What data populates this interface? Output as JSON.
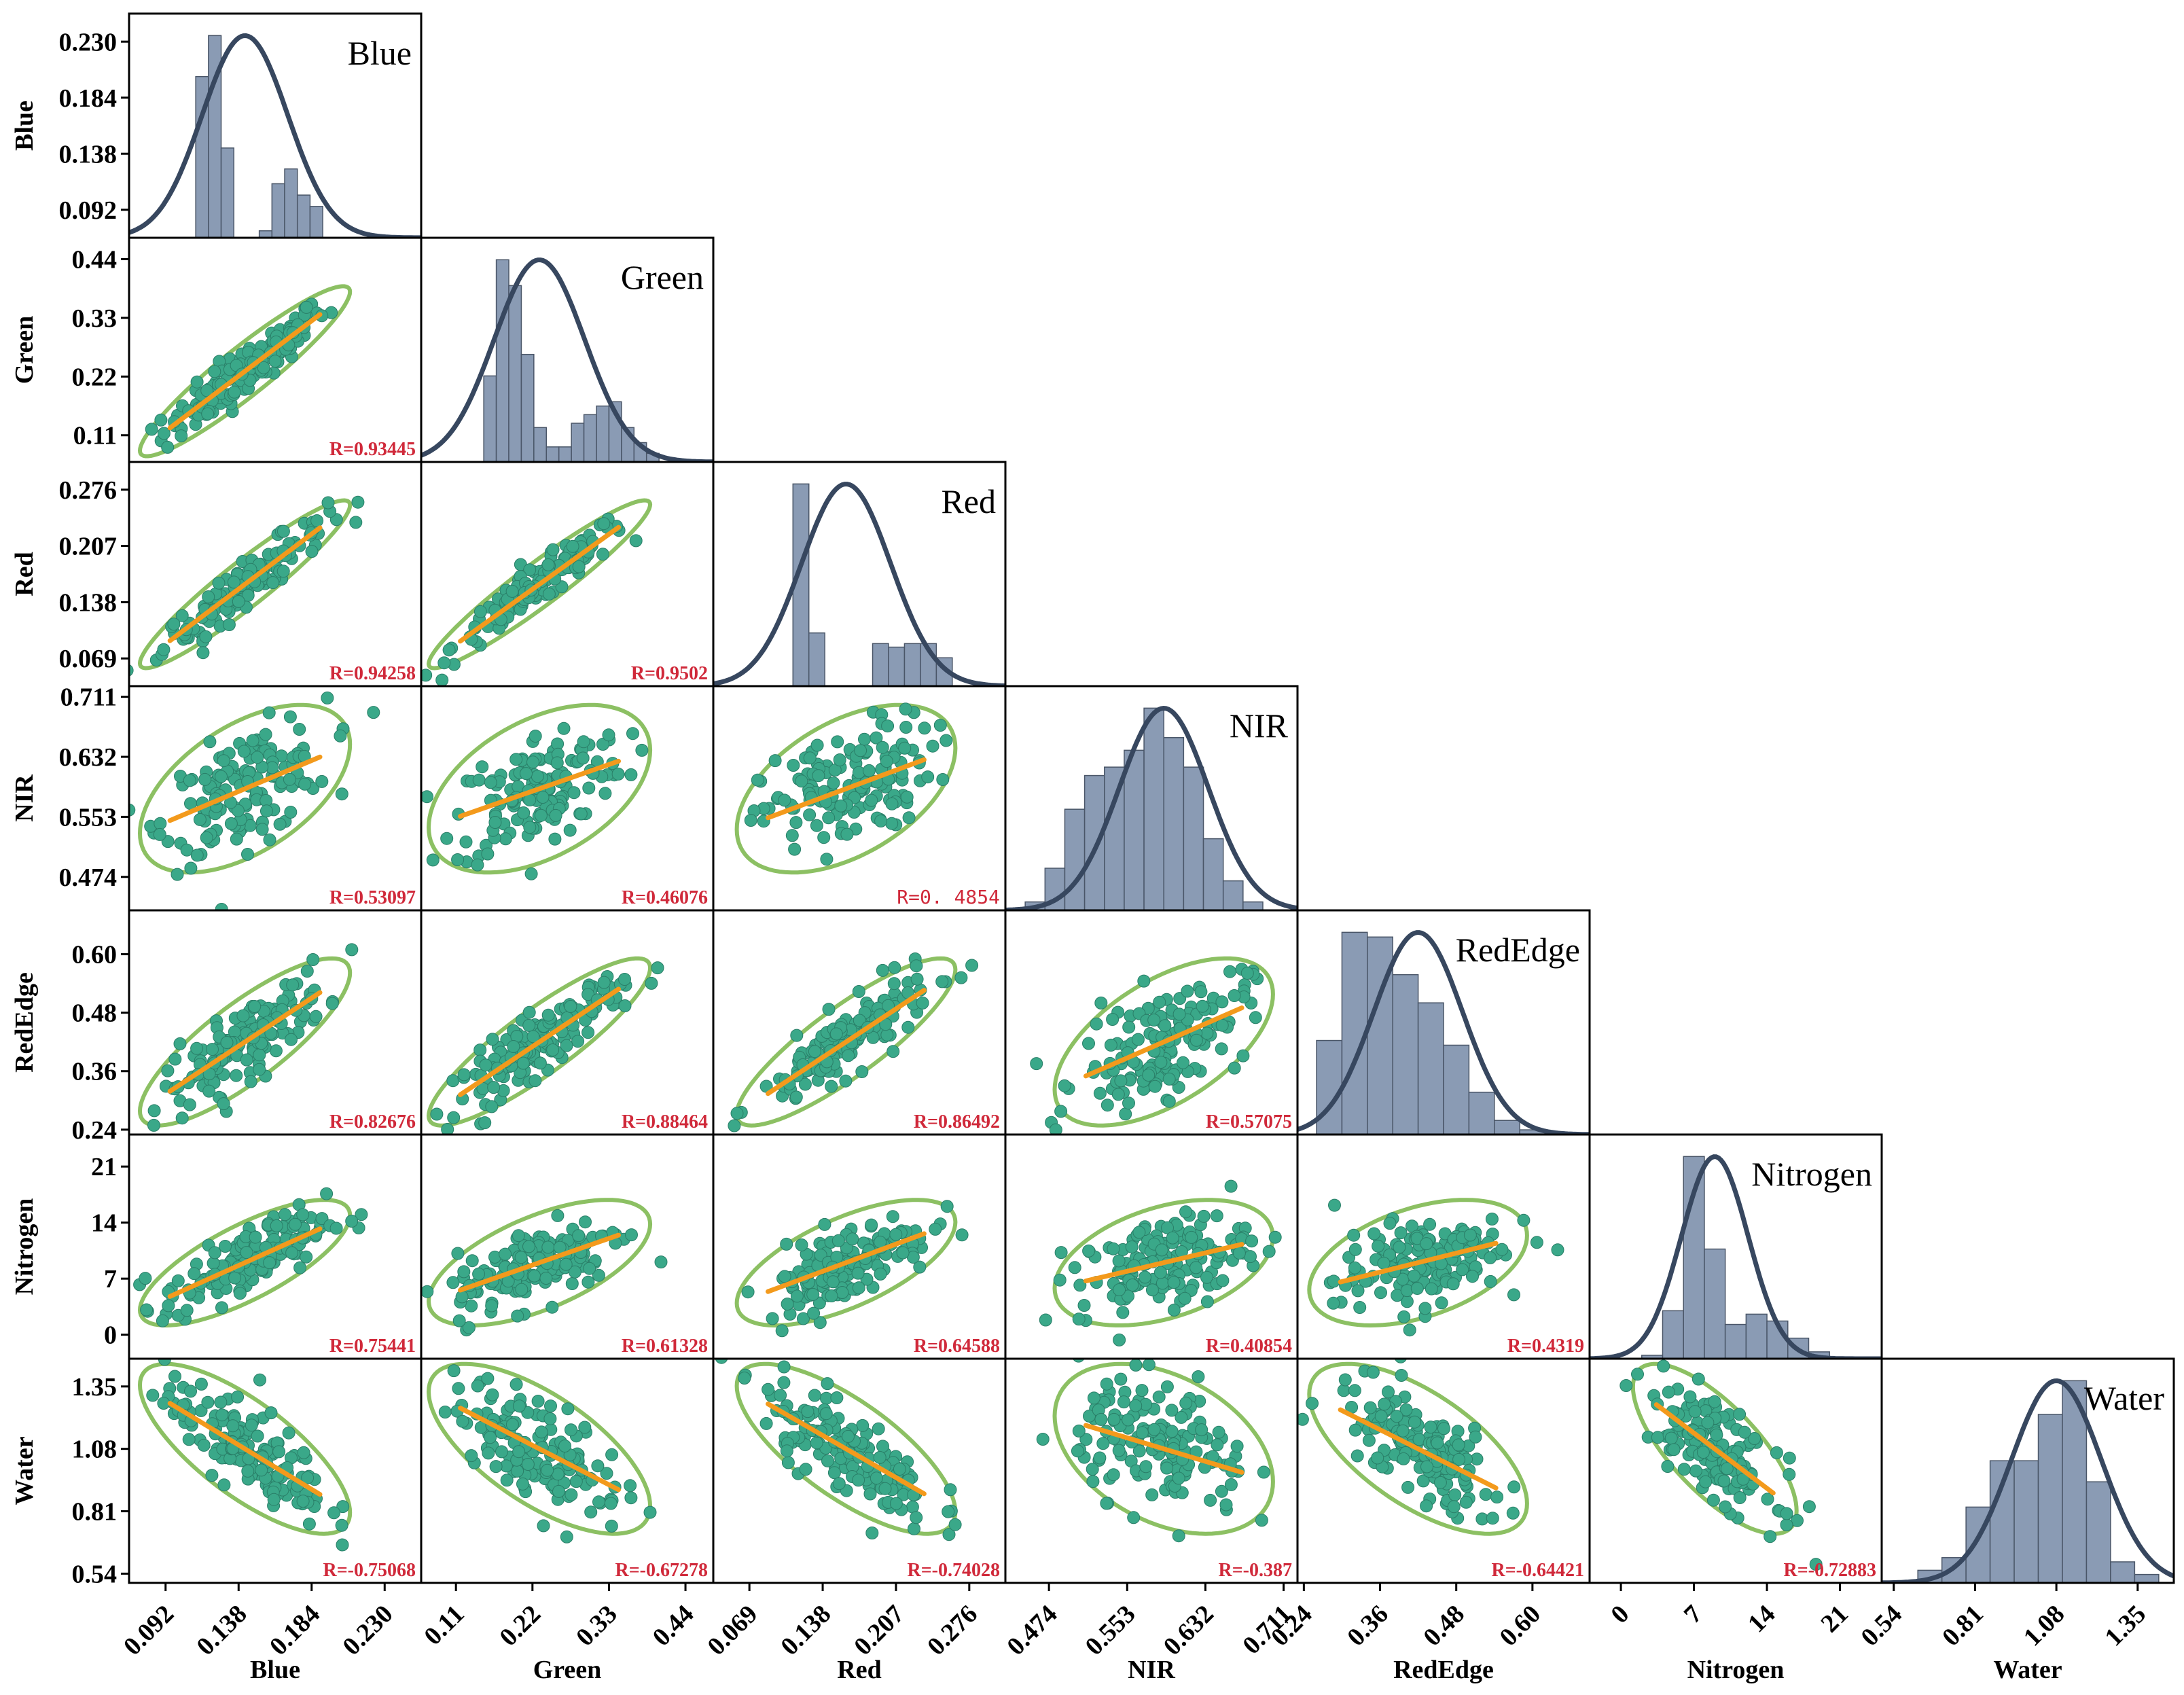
{
  "figure": {
    "type": "scatter-matrix",
    "variables": [
      "Blue",
      "Green",
      "Red",
      "NIR",
      "RedEdge",
      "Nitrogen",
      "Water"
    ]
  },
  "colors": {
    "histogram": "#8a9bb4",
    "density_curve": "#37475f",
    "ellipse": "#8cc063",
    "fit_line": "#f39a1c",
    "points": "#3aa889",
    "correlation_text": "#d0293a"
  },
  "chart_data": {
    "type": "scatter",
    "title": "",
    "variables": [
      {
        "name": "Blue",
        "label": "Blue",
        "ticks": [
          "0.092",
          "0.138",
          "0.184",
          "0.230"
        ],
        "tick_values": [
          0.092,
          0.138,
          0.184,
          0.23
        ],
        "range": [
          0.069,
          0.253
        ],
        "mean": 0.142,
        "sd": 0.027
      },
      {
        "name": "Green",
        "label": "Green",
        "ticks": [
          "0.11",
          "0.22",
          "0.33",
          "0.44"
        ],
        "tick_values": [
          0.11,
          0.22,
          0.33,
          0.44
        ],
        "range": [
          0.06,
          0.48
        ],
        "mean": 0.23,
        "sd": 0.065
      },
      {
        "name": "Red",
        "label": "Red",
        "ticks": [
          "0.069",
          "0.138",
          "0.207",
          "0.276"
        ],
        "tick_values": [
          0.069,
          0.138,
          0.207,
          0.276
        ],
        "range": [
          0.035,
          0.31
        ],
        "mean": 0.16,
        "sd": 0.042
      },
      {
        "name": "NIR",
        "label": "NIR",
        "ticks": [
          "0.474",
          "0.553",
          "0.632",
          "0.711"
        ],
        "tick_values": [
          0.474,
          0.553,
          0.632,
          0.711
        ],
        "range": [
          0.43,
          0.725
        ],
        "mean": 0.59,
        "sd": 0.045
      },
      {
        "name": "RedEdge",
        "label": "RedEdge",
        "ticks": [
          "0.24",
          "0.36",
          "0.48",
          "0.60"
        ],
        "tick_values": [
          0.24,
          0.36,
          0.48,
          0.6
        ],
        "range": [
          0.23,
          0.69
        ],
        "mean": 0.42,
        "sd": 0.07
      },
      {
        "name": "Nitrogen",
        "label": "Nitrogen",
        "ticks": [
          "0",
          "7",
          "14",
          "21"
        ],
        "tick_values": [
          0,
          7,
          14,
          21
        ],
        "range": [
          -3,
          25
        ],
        "mean": 9,
        "sd": 3.2
      },
      {
        "name": "Water",
        "label": "Water",
        "ticks": [
          "0.54",
          "0.81",
          "1.08",
          "1.35"
        ],
        "tick_values": [
          0.54,
          0.81,
          1.08,
          1.35
        ],
        "range": [
          0.5,
          1.47
        ],
        "mean": 1.08,
        "sd": 0.15
      }
    ],
    "histograms": [
      {
        "variable": "Blue",
        "bin_edges": [
          0.111,
          0.119,
          0.127,
          0.135,
          0.143,
          0.151,
          0.159,
          0.167,
          0.175,
          0.183,
          0.191,
          0.199
        ],
        "counts": [
          0.185,
          0.232,
          0.103,
          0.0,
          0.0,
          0.008,
          0.062,
          0.079,
          0.049,
          0.036,
          0.0
        ]
      },
      {
        "variable": "Green",
        "bin_edges": [
          0.15,
          0.168,
          0.186,
          0.204,
          0.222,
          0.24,
          0.258,
          0.276,
          0.294,
          0.312,
          0.33,
          0.348,
          0.366,
          0.384,
          0.402,
          0.42
        ],
        "counts": [
          0.2,
          0.47,
          0.41,
          0.25,
          0.08,
          0.035,
          0.035,
          0.09,
          0.11,
          0.13,
          0.14,
          0.08,
          0.045,
          0.02,
          0.0
        ]
      },
      {
        "variable": "Red",
        "bin_edges": [
          0.11,
          0.125,
          0.14,
          0.155,
          0.17,
          0.185,
          0.2,
          0.215,
          0.23,
          0.245,
          0.26,
          0.275
        ],
        "counts": [
          0.285,
          0.075,
          0.0,
          0.0,
          0.0,
          0.06,
          0.055,
          0.06,
          0.06,
          0.04,
          0.0
        ]
      },
      {
        "variable": "NIR",
        "bin_edges": [
          0.45,
          0.47,
          0.49,
          0.51,
          0.53,
          0.55,
          0.57,
          0.59,
          0.61,
          0.63,
          0.65,
          0.67,
          0.69,
          0.71
        ],
        "counts": [
          2,
          10,
          24,
          32,
          34,
          38,
          48,
          41,
          34,
          17,
          7,
          2,
          0
        ]
      },
      {
        "variable": "RedEdge",
        "bin_edges": [
          0.26,
          0.3,
          0.34,
          0.38,
          0.42,
          0.46,
          0.5,
          0.54,
          0.58,
          0.62,
          0.66
        ],
        "counts": [
          20,
          43,
          42,
          34,
          28,
          19,
          9,
          3,
          1,
          0
        ]
      },
      {
        "variable": "Nitrogen",
        "bin_edges": [
          2,
          4,
          6,
          8,
          10,
          12,
          14,
          16,
          18,
          20,
          22
        ],
        "counts": [
          1,
          14,
          59,
          32,
          10,
          13,
          11,
          6,
          2,
          0
        ]
      },
      {
        "variable": "Water",
        "bin_edges": [
          0.62,
          0.7,
          0.78,
          0.86,
          0.94,
          1.02,
          1.1,
          1.18,
          1.26,
          1.34,
          1.42
        ],
        "counts": [
          3,
          6,
          18,
          29,
          29,
          40,
          48,
          24,
          5,
          2
        ]
      }
    ],
    "correlations": [
      {
        "x": "Blue",
        "y": "Green",
        "r": 0.93445,
        "label": "R=0.93445"
      },
      {
        "x": "Blue",
        "y": "Red",
        "r": 0.94258,
        "label": "R=0.94258"
      },
      {
        "x": "Green",
        "y": "Red",
        "r": 0.9502,
        "label": "R=0.9502"
      },
      {
        "x": "Blue",
        "y": "NIR",
        "r": 0.53097,
        "label": "R=0.53097"
      },
      {
        "x": "Green",
        "y": "NIR",
        "r": 0.46076,
        "label": "R=0.46076"
      },
      {
        "x": "Red",
        "y": "NIR",
        "r": 0.4854,
        "label": "R=0. 4854",
        "style": "plain"
      },
      {
        "x": "Blue",
        "y": "RedEdge",
        "r": 0.82676,
        "label": "R=0.82676"
      },
      {
        "x": "Green",
        "y": "RedEdge",
        "r": 0.88464,
        "label": "R=0.88464"
      },
      {
        "x": "Red",
        "y": "RedEdge",
        "r": 0.86492,
        "label": "R=0.86492"
      },
      {
        "x": "NIR",
        "y": "RedEdge",
        "r": 0.57075,
        "label": "R=0.57075"
      },
      {
        "x": "Blue",
        "y": "Nitrogen",
        "r": 0.75441,
        "label": "R=0.75441"
      },
      {
        "x": "Green",
        "y": "Nitrogen",
        "r": 0.61328,
        "label": "R=0.61328"
      },
      {
        "x": "Red",
        "y": "Nitrogen",
        "r": 0.64588,
        "label": "R=0.64588"
      },
      {
        "x": "NIR",
        "y": "Nitrogen",
        "r": 0.40854,
        "label": "R=0.40854"
      },
      {
        "x": "RedEdge",
        "y": "Nitrogen",
        "r": 0.4319,
        "label": "R=0.4319"
      },
      {
        "x": "Blue",
        "y": "Water",
        "r": -0.75068,
        "label": "R=-0.75068"
      },
      {
        "x": "Green",
        "y": "Water",
        "r": -0.67278,
        "label": "R=-0.67278"
      },
      {
        "x": "Red",
        "y": "Water",
        "r": -0.74028,
        "label": "R=-0.74028"
      },
      {
        "x": "NIR",
        "y": "Water",
        "r": -0.387,
        "label": "R=-0.387"
      },
      {
        "x": "RedEdge",
        "y": "Water",
        "r": -0.64421,
        "label": "R=-0.64421"
      },
      {
        "x": "Nitrogen",
        "y": "Water",
        "r": -0.72883,
        "label": "R=-0.72883"
      }
    ],
    "points_per_panel": 150
  }
}
